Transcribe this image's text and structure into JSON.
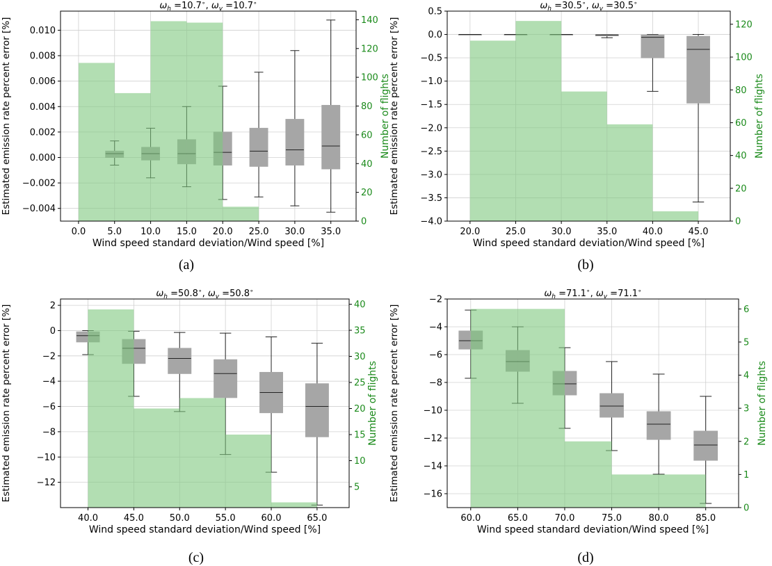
{
  "chart_data": [
    {
      "type": "bar",
      "panel_label": "(a)",
      "title_main": "ω",
      "title_text": "ω_h =10.7 ∘, ω_v =10.7 ∘",
      "title_parts": {
        "h_value": "=10.7",
        "v_value": "=10.7",
        "degree": "∘"
      },
      "xlabel": "Wind speed standard deviation/Wind speed [%]",
      "ylabel": "Estimated emission rate percent error [%]",
      "y2label": "Number of flights",
      "categories": [
        "0.0",
        "5.0",
        "10.0",
        "15.0",
        "20.0",
        "25.0",
        "30.0",
        "35.0"
      ],
      "xlim": [
        -2.5,
        38.5
      ],
      "ylim": [
        -0.005,
        0.0115
      ],
      "y2lim": [
        0,
        146
      ],
      "yticks": [
        -0.004,
        -0.002,
        0.0,
        0.002,
        0.004,
        0.006,
        0.008,
        0.01
      ],
      "ytick_labels": [
        "−0.004",
        "−0.002",
        "0.000",
        "0.002",
        "0.004",
        "0.006",
        "0.008",
        "0.010"
      ],
      "y2ticks": [
        0,
        20,
        40,
        60,
        80,
        100,
        120,
        140
      ],
      "y2tick_labels": [
        "0",
        "20",
        "40",
        "60",
        "80",
        "100",
        "120",
        "140"
      ],
      "histogram": {
        "edges": [
          0,
          5,
          10,
          15,
          20,
          25
        ],
        "counts": [
          110,
          89,
          139,
          138,
          10
        ]
      },
      "boxes": [
        {
          "x": 5,
          "whislo": -0.0006,
          "q1": 0.0,
          "med": 0.0003,
          "q3": 0.0005,
          "whishi": 0.0013
        },
        {
          "x": 10,
          "whislo": -0.0016,
          "q1": -0.0002,
          "med": 0.0003,
          "q3": 0.0008,
          "whishi": 0.0023
        },
        {
          "x": 15,
          "whislo": -0.0023,
          "q1": -0.0005,
          "med": 0.0003,
          "q3": 0.0014,
          "whishi": 0.004
        },
        {
          "x": 20,
          "whislo": -0.0033,
          "q1": -0.0006,
          "med": 0.0004,
          "q3": 0.002,
          "whishi": 0.0056
        },
        {
          "x": 25,
          "whislo": -0.0031,
          "q1": -0.0007,
          "med": 0.0005,
          "q3": 0.0023,
          "whishi": 0.0067
        },
        {
          "x": 30,
          "whislo": -0.0038,
          "q1": -0.0006,
          "med": 0.0006,
          "q3": 0.003,
          "whishi": 0.0084
        },
        {
          "x": 35,
          "whislo": -0.0043,
          "q1": -0.0009,
          "med": 0.0009,
          "q3": 0.0041,
          "whishi": 0.0108
        }
      ]
    },
    {
      "type": "bar",
      "panel_label": "(b)",
      "title_parts": {
        "h_value": "=30.5",
        "v_value": "=30.5",
        "degree": "∘"
      },
      "xlabel": "Wind speed standard deviation/Wind speed [%]",
      "ylabel": "Estimated emission rate percent error [%]",
      "y2label": "Number of flights",
      "categories": [
        "20.0",
        "25.0",
        "30.0",
        "35.0",
        "40.0",
        "45.0"
      ],
      "xlim": [
        17.5,
        48.5
      ],
      "ylim": [
        -4.0,
        0.5
      ],
      "y2lim": [
        0,
        128
      ],
      "yticks": [
        -4.0,
        -3.5,
        -3.0,
        -2.5,
        -2.0,
        -1.5,
        -1.0,
        -0.5,
        0.0,
        0.5
      ],
      "ytick_labels": [
        "−4.0",
        "−3.5",
        "−3.0",
        "−2.5",
        "−2.0",
        "−1.5",
        "−1.0",
        "−0.5",
        "0.0",
        "0.5"
      ],
      "y2ticks": [
        0,
        20,
        40,
        60,
        80,
        100,
        120
      ],
      "y2tick_labels": [
        "0",
        "20",
        "40",
        "60",
        "80",
        "100",
        "120"
      ],
      "histogram": {
        "edges": [
          20,
          25,
          30,
          35,
          40,
          45
        ],
        "counts": [
          110,
          122,
          79,
          59,
          6
        ]
      },
      "boxes": [
        {
          "x": 20,
          "whislo": 0.0,
          "q1": 0.0,
          "med": 0.0,
          "q3": 0.0,
          "whishi": 0.0
        },
        {
          "x": 25,
          "whislo": 0.0,
          "q1": 0.0,
          "med": 0.0,
          "q3": 0.0,
          "whishi": 0.0
        },
        {
          "x": 30,
          "whislo": 0.0,
          "q1": 0.0,
          "med": 0.0,
          "q3": 0.0,
          "whishi": 0.0
        },
        {
          "x": 35,
          "whislo": -0.07,
          "q1": -0.03,
          "med": -0.01,
          "q3": 0.0,
          "whishi": 0.0
        },
        {
          "x": 40,
          "whislo": -1.22,
          "q1": -0.5,
          "med": -0.06,
          "q3": -0.01,
          "whishi": 0.0
        },
        {
          "x": 45,
          "whislo": -3.59,
          "q1": -1.47,
          "med": -0.32,
          "q3": -0.04,
          "whishi": 0.0
        }
      ]
    },
    {
      "type": "bar",
      "panel_label": "(c)",
      "title_parts": {
        "h_value": "=50.8",
        "v_value": "=50.8",
        "degree": "∘"
      },
      "xlabel": "Wind speed standard deviation/Wind speed [%]",
      "ylabel": "Estimated emission rate percent error [%]",
      "y2label": "Number of flights",
      "categories": [
        "40.0",
        "45.0",
        "50.0",
        "55.0",
        "60.0",
        "65.0"
      ],
      "xlim": [
        37.0,
        68.5
      ],
      "ylim": [
        -14.0,
        2.5
      ],
      "y2lim": [
        1,
        41
      ],
      "yticks": [
        -12,
        -10,
        -8,
        -6,
        -4,
        -2,
        0,
        2
      ],
      "ytick_labels": [
        "−12",
        "−10",
        "−8",
        "−6",
        "−4",
        "−2",
        "0",
        "2"
      ],
      "y2ticks": [
        5,
        10,
        15,
        20,
        25,
        30,
        35,
        40
      ],
      "y2tick_labels": [
        "5",
        "10",
        "15",
        "20",
        "25",
        "30",
        "35",
        "40"
      ],
      "histogram": {
        "edges": [
          40,
          45,
          50,
          55,
          60,
          65
        ],
        "counts": [
          39,
          20,
          22,
          15,
          2
        ]
      },
      "boxes": [
        {
          "x": 40,
          "whislo": -1.9,
          "q1": -0.9,
          "med": -0.4,
          "q3": -0.1,
          "whishi": 0.0
        },
        {
          "x": 45,
          "whislo": -5.2,
          "q1": -2.6,
          "med": -1.4,
          "q3": -0.7,
          "whishi": -0.05
        },
        {
          "x": 50,
          "whislo": -6.4,
          "q1": -3.4,
          "med": -2.2,
          "q3": -1.4,
          "whishi": -0.15
        },
        {
          "x": 55,
          "whislo": -9.8,
          "q1": -5.3,
          "med": -3.4,
          "q3": -2.3,
          "whishi": -0.2
        },
        {
          "x": 60,
          "whislo": -11.2,
          "q1": -6.5,
          "med": -4.9,
          "q3": -3.3,
          "whishi": -0.5
        },
        {
          "x": 65,
          "whislo": -13.8,
          "q1": -8.4,
          "med": -6.0,
          "q3": -4.2,
          "whishi": -1.0
        }
      ]
    },
    {
      "type": "bar",
      "panel_label": "(d)",
      "title_parts": {
        "h_value": "=71.1",
        "v_value": "=71.1",
        "degree": "∘"
      },
      "xlabel": "Wind speed standard deviation/Wind speed [%]",
      "ylabel": "Estimated emission rate percent error [%]",
      "y2label": "Number of flights",
      "categories": [
        "60.0",
        "65.0",
        "70.0",
        "75.0",
        "80.0",
        "85.0"
      ],
      "xlim": [
        57.5,
        88.5
      ],
      "ylim": [
        -17.0,
        -2.0
      ],
      "y2lim": [
        0,
        6.3
      ],
      "yticks": [
        -16,
        -14,
        -12,
        -10,
        -8,
        -6,
        -4,
        -2
      ],
      "ytick_labels": [
        "−16",
        "−14",
        "−12",
        "−10",
        "−8",
        "−6",
        "−4",
        "−2"
      ],
      "y2ticks": [
        0,
        1,
        2,
        3,
        4,
        5,
        6
      ],
      "y2tick_labels": [
        "0",
        "1",
        "2",
        "3",
        "4",
        "5",
        "6"
      ],
      "histogram": {
        "edges": [
          60,
          65,
          70,
          75,
          80,
          85
        ],
        "counts": [
          6,
          6,
          2,
          1,
          1
        ]
      },
      "boxes": [
        {
          "x": 60,
          "whislo": -7.7,
          "q1": -5.6,
          "med": -5.0,
          "q3": -4.3,
          "whishi": -2.8
        },
        {
          "x": 65,
          "whislo": -9.5,
          "q1": -7.2,
          "med": -6.5,
          "q3": -5.7,
          "whishi": -4.0
        },
        {
          "x": 70,
          "whislo": -11.3,
          "q1": -8.9,
          "med": -8.1,
          "q3": -7.2,
          "whishi": -5.5
        },
        {
          "x": 75,
          "whislo": -12.9,
          "q1": -10.5,
          "med": -9.7,
          "q3": -8.8,
          "whishi": -6.5
        },
        {
          "x": 80,
          "whislo": -14.6,
          "q1": -12.1,
          "med": -11.0,
          "q3": -10.1,
          "whishi": -7.4
        },
        {
          "x": 85,
          "whislo": -16.7,
          "q1": -13.6,
          "med": -12.5,
          "q3": -11.5,
          "whishi": -9.0
        }
      ]
    }
  ],
  "colors": {
    "hist_fill": "#7ec87e",
    "hist_opacity": 0.6,
    "box_fill": "#a6a6a6",
    "box_edge": "#a6a6a6",
    "median": "#222222",
    "whisker": "#222222",
    "grid": "#d0d0d0",
    "right_axis": "#1a8a1a"
  }
}
